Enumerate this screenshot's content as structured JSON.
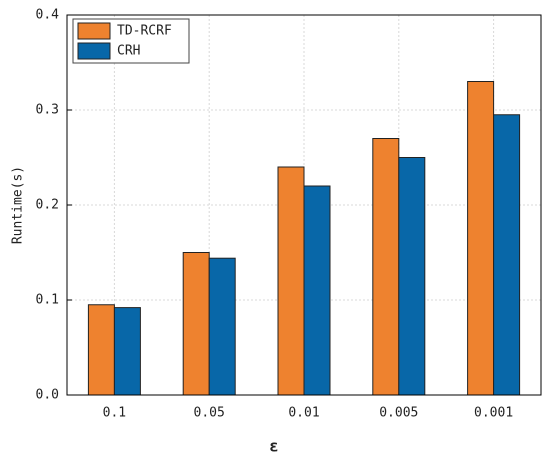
{
  "chart_data": {
    "type": "bar",
    "xlabel": "ε",
    "ylabel": "Runtime(s)",
    "categories": [
      "0.1",
      "0.05",
      "0.01",
      "0.005",
      "0.001"
    ],
    "series": [
      {
        "name": "TD-RCRF",
        "color": "#ee822f",
        "values": [
          0.095,
          0.15,
          0.24,
          0.27,
          0.33
        ]
      },
      {
        "name": "CRH",
        "color": "#0867a8",
        "values": [
          0.092,
          0.144,
          0.22,
          0.25,
          0.295
        ]
      }
    ],
    "ylim": [
      0,
      0.4
    ],
    "yticks": [
      {
        "value": 0,
        "label": "0.0"
      },
      0.1,
      0.2,
      0.3,
      0.4
    ],
    "grid": true,
    "legend": "upper left"
  }
}
